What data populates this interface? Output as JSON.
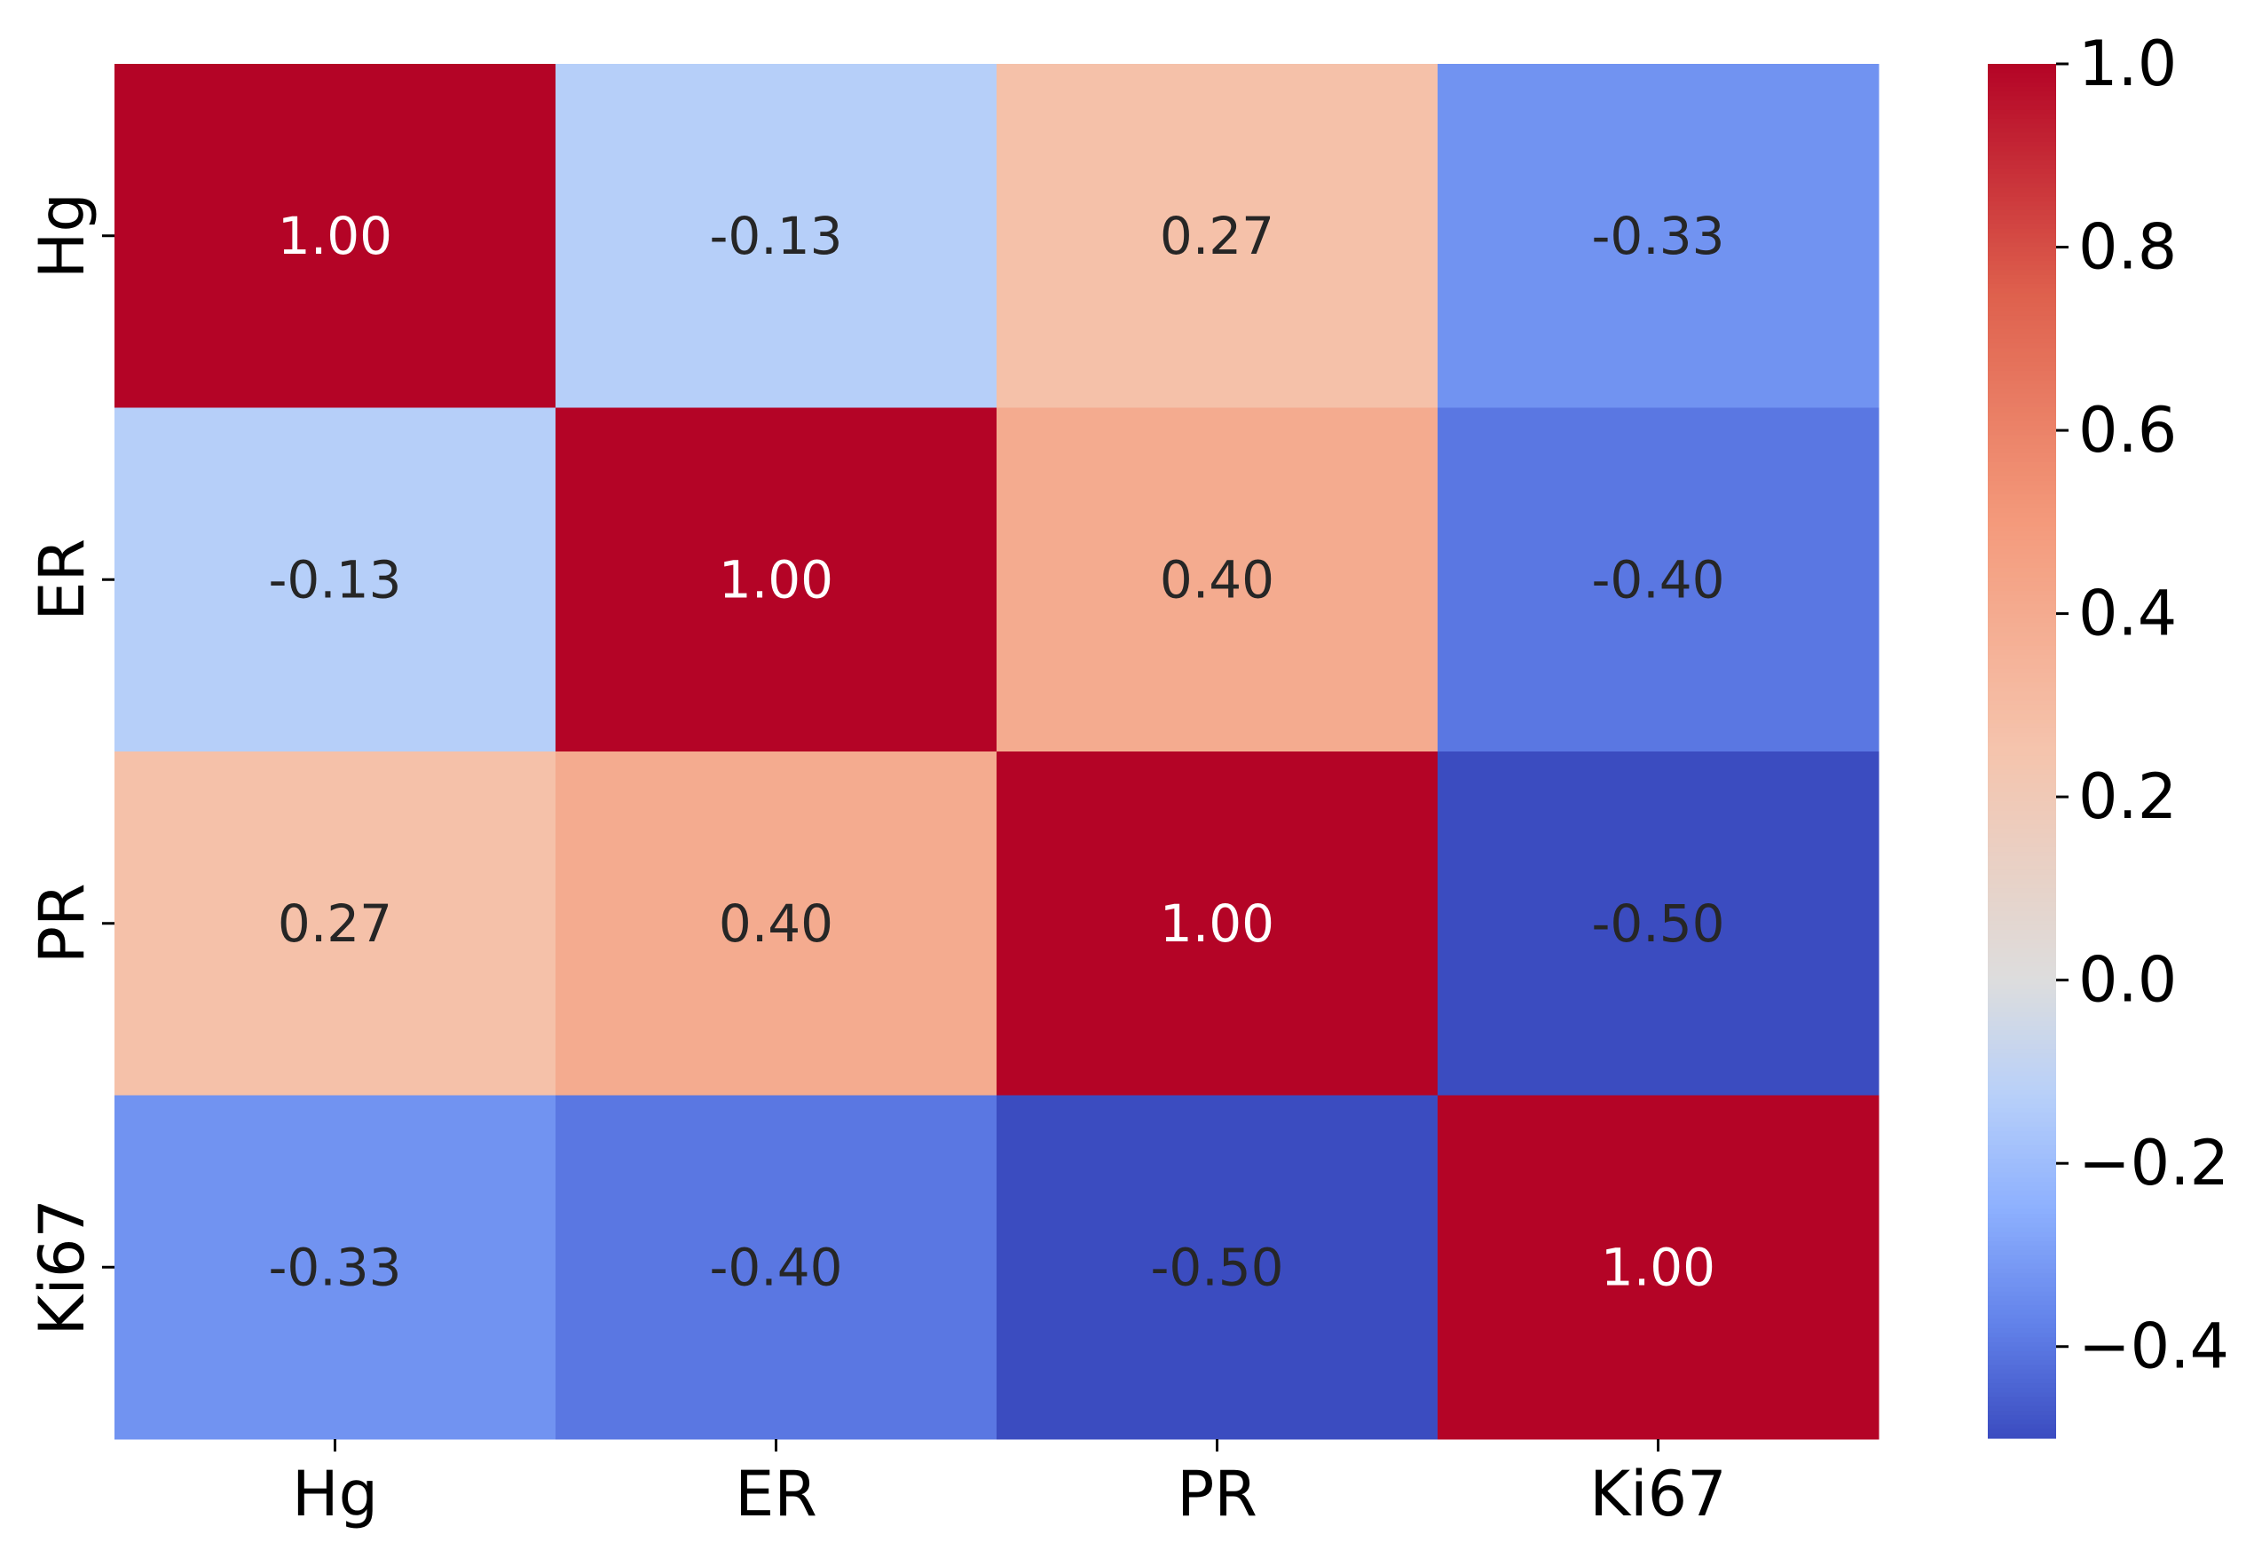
{
  "chart_data": {
    "type": "heatmap",
    "title": "",
    "xlabel": "",
    "ylabel": "",
    "x_labels": [
      "Hg",
      "ER",
      "PR",
      "Ki67"
    ],
    "y_labels": [
      "Hg",
      "ER",
      "PR",
      "Ki67"
    ],
    "values": [
      [
        1.0,
        -0.13,
        0.27,
        -0.33
      ],
      [
        -0.13,
        1.0,
        0.4,
        -0.4
      ],
      [
        0.27,
        0.4,
        1.0,
        -0.5
      ],
      [
        -0.33,
        -0.4,
        -0.5,
        1.0
      ]
    ],
    "cell_labels": [
      [
        "1.00",
        "-0.13",
        "0.27",
        "-0.33"
      ],
      [
        "-0.13",
        "1.00",
        "0.40",
        "-0.40"
      ],
      [
        "0.27",
        "0.40",
        "1.00",
        "-0.50"
      ],
      [
        "-0.33",
        "-0.40",
        "-0.50",
        "1.00"
      ]
    ],
    "colormap": "coolwarm",
    "color_range": [
      -0.5,
      1.0
    ],
    "colorbar": {
      "ticks": [
        1.0,
        0.8,
        0.6,
        0.4,
        0.2,
        0.0,
        -0.2,
        -0.4
      ],
      "tick_labels": [
        "1.0",
        "0.8",
        "0.6",
        "0.4",
        "0.2",
        "0.0",
        "−0.2",
        "−0.4"
      ]
    },
    "grid": false,
    "legend": "colorbar-right",
    "colors": {
      "text_dark": "#262626",
      "text_light": "#ffffff",
      "axis": "#000000"
    }
  }
}
